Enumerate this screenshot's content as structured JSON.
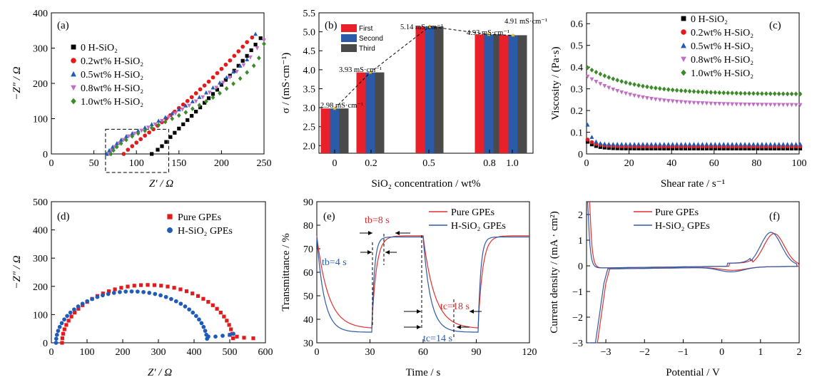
{
  "chart_data": [
    {
      "panel": "(a)",
      "type": "scatter",
      "xlabel": "Z′ / Ω",
      "ylabel": "−Z″ / Ω",
      "xlim": [
        0,
        250
      ],
      "ylim": [
        0,
        400
      ],
      "xticks": [
        "0",
        "50",
        "100",
        "150",
        "200",
        "250"
      ],
      "yticks": [
        "0",
        "100",
        "200",
        "300",
        "400"
      ],
      "legend_position": "top-left",
      "series": [
        {
          "name": "0 H-SiO₂",
          "color": "#000000",
          "marker": "square",
          "points": [
            [
              118,
              0
            ],
            [
              125,
              12
            ],
            [
              130,
              22
            ],
            [
              135,
              34
            ],
            [
              140,
              48
            ],
            [
              145,
              60
            ],
            [
              150,
              72
            ],
            [
              155,
              84
            ],
            [
              160,
              96
            ],
            [
              165,
              108
            ],
            [
              170,
              120
            ],
            [
              175,
              132
            ],
            [
              180,
              145
            ],
            [
              185,
              158
            ],
            [
              190,
              170
            ],
            [
              195,
              182
            ],
            [
              200,
              196
            ],
            [
              205,
              210
            ],
            [
              210,
              222
            ],
            [
              215,
              236
            ],
            [
              220,
              250
            ],
            [
              225,
              264
            ],
            [
              230,
              278
            ],
            [
              235,
              294
            ],
            [
              240,
              310
            ],
            [
              246,
              328
            ]
          ]
        },
        {
          "name": "0.2wt% H-SiO₂",
          "color": "#e31a1c",
          "marker": "circle",
          "points": [
            [
              85,
              0
            ],
            [
              90,
              12
            ],
            [
              95,
              22
            ],
            [
              100,
              32
            ],
            [
              105,
              42
            ],
            [
              110,
              52
            ],
            [
              115,
              61
            ],
            [
              120,
              70
            ],
            [
              125,
              80
            ],
            [
              130,
              90
            ],
            [
              135,
              100
            ],
            [
              140,
              110
            ],
            [
              145,
              120
            ],
            [
              150,
              130
            ],
            [
              155,
              140
            ],
            [
              160,
              150
            ],
            [
              165,
              161
            ],
            [
              170,
              172
            ],
            [
              175,
              183
            ],
            [
              180,
              194
            ],
            [
              185,
              205
            ],
            [
              190,
              217
            ],
            [
              195,
              229
            ],
            [
              200,
              241
            ],
            [
              205,
              253
            ],
            [
              210,
              265
            ],
            [
              215,
              278
            ],
            [
              220,
              291
            ],
            [
              225,
              304
            ],
            [
              230,
              317
            ],
            [
              236,
              330
            ]
          ]
        },
        {
          "name": "0.5wt% H-SiO₂",
          "color": "#1f5bb8",
          "marker": "triangle-up",
          "points": [
            [
              65,
              0
            ],
            [
              68,
              10
            ],
            [
              72,
              20
            ],
            [
              77,
              30
            ],
            [
              82,
              40
            ],
            [
              88,
              50
            ],
            [
              95,
              58
            ],
            [
              102,
              66
            ],
            [
              110,
              75
            ],
            [
              118,
              84
            ],
            [
              126,
              94
            ],
            [
              134,
              104
            ],
            [
              142,
              115
            ],
            [
              150,
              126
            ],
            [
              158,
              137
            ],
            [
              166,
              149
            ],
            [
              174,
              161
            ],
            [
              182,
              174
            ],
            [
              190,
              188
            ],
            [
              198,
              202
            ],
            [
              206,
              217
            ],
            [
              214,
              233
            ],
            [
              222,
              250
            ],
            [
              230,
              268
            ],
            [
              240,
              340
            ]
          ]
        },
        {
          "name": "0.8wt% H-SiO₂",
          "color": "#c06fc5",
          "marker": "triangle-down",
          "points": [
            [
              68,
              0
            ],
            [
              71,
              10
            ],
            [
              75,
              20
            ],
            [
              80,
              30
            ],
            [
              85,
              40
            ],
            [
              91,
              50
            ],
            [
              98,
              58
            ],
            [
              106,
              66
            ],
            [
              114,
              75
            ],
            [
              122,
              84
            ],
            [
              130,
              94
            ],
            [
              138,
              104
            ],
            [
              146,
              115
            ],
            [
              154,
              126
            ],
            [
              162,
              137
            ],
            [
              170,
              149
            ],
            [
              178,
              161
            ],
            [
              186,
              174
            ],
            [
              194,
              188
            ],
            [
              202,
              202
            ],
            [
              210,
              217
            ],
            [
              218,
              233
            ],
            [
              226,
              252
            ],
            [
              234,
              274
            ],
            [
              242,
              300
            ],
            [
              250,
              322
            ]
          ]
        },
        {
          "name": "1.0wt% H-SiO₂",
          "color": "#3d8a2a",
          "marker": "diamond",
          "points": [
            [
              70,
              0
            ],
            [
              73,
              10
            ],
            [
              77,
              20
            ],
            [
              82,
              30
            ],
            [
              88,
              40
            ],
            [
              95,
              50
            ],
            [
              102,
              58
            ],
            [
              110,
              66
            ],
            [
              118,
              74
            ],
            [
              126,
              82
            ],
            [
              134,
              91
            ],
            [
              142,
              100
            ],
            [
              150,
              109
            ],
            [
              158,
              118
            ],
            [
              166,
              128
            ],
            [
              174,
              138
            ],
            [
              182,
              149
            ],
            [
              190,
              160
            ],
            [
              198,
              172
            ],
            [
              206,
              185
            ],
            [
              214,
              199
            ],
            [
              222,
              214
            ],
            [
              230,
              231
            ],
            [
              238,
              250
            ],
            [
              244,
              272
            ],
            [
              250,
              312
            ]
          ]
        }
      ],
      "inset_box": {
        "x": [
          62,
          138
        ],
        "y": [
          -40,
          70
        ]
      }
    },
    {
      "panel": "(b)",
      "type": "bar",
      "xlabel": "SiO₂ concentration / wt%",
      "ylabel": "σ / (mS·cm⁻¹)",
      "ylim": [
        1.8,
        5.5
      ],
      "yticks": [
        "2.0",
        "2.5",
        "3.0",
        "3.5",
        "4.0",
        "4.5",
        "5.0",
        "5.5"
      ],
      "categories": [
        "0",
        "0.2",
        "0.5",
        "0.8",
        "1.0"
      ],
      "series": [
        {
          "name": "First",
          "color": "#e8202a",
          "values": [
            2.98,
            3.93,
            5.14,
            4.93,
            4.91
          ]
        },
        {
          "name": "Second",
          "color": "#2b5aa8",
          "values": [
            2.98,
            3.93,
            5.14,
            4.93,
            4.91
          ]
        },
        {
          "name": "Third",
          "color": "#4a4a4a",
          "values": [
            2.98,
            3.93,
            5.14,
            4.93,
            4.91
          ]
        }
      ],
      "data_labels": [
        "2.98 mS·cm⁻¹",
        "3.93 mS·cm⁻¹",
        "5.14 mS·cm⁻¹",
        "4.93 mS·cm⁻¹",
        "4.91 mS·cm⁻¹"
      ],
      "trend_line": "dashed",
      "legend_position": "top-left"
    },
    {
      "panel": "(c)",
      "type": "scatter",
      "xlabel": "Shear rate / s⁻¹",
      "ylabel": "Viscosity / (Pa·s)",
      "xlim": [
        0,
        100
      ],
      "ylim": [
        0,
        0.65
      ],
      "xticks": [
        "0",
        "20",
        "40",
        "60",
        "80",
        "100"
      ],
      "yticks": [
        "0",
        "0.1",
        "0.2",
        "0.3",
        "0.4",
        "0.5",
        "0.6"
      ],
      "legend_position": "top-right",
      "series": [
        {
          "name": "0 H-SiO₂",
          "color": "#000000",
          "marker": "square",
          "start": 0.06,
          "end": 0.025,
          "decay": 4
        },
        {
          "name": "0.2wt% H-SiO₂",
          "color": "#e31a1c",
          "marker": "circle",
          "start": 0.07,
          "end": 0.035,
          "decay": 4
        },
        {
          "name": "0.5wt% H-SiO₂",
          "color": "#1f5bb8",
          "marker": "triangle-up",
          "start": 0.16,
          "end": 0.045,
          "decay": 2
        },
        {
          "name": "0.8wt% H-SiO₂",
          "color": "#c06fc5",
          "marker": "triangle-down",
          "start": 0.36,
          "end": 0.225,
          "decay": 20
        },
        {
          "name": "1.0wt% H-SiO₂",
          "color": "#3d8a2a",
          "marker": "diamond",
          "start": 0.4,
          "end": 0.275,
          "decay": 22
        }
      ]
    },
    {
      "panel": "(d)",
      "type": "scatter",
      "xlabel": "Z′ / Ω",
      "ylabel": "−Z″ / Ω",
      "xlim": [
        0,
        600
      ],
      "ylim": [
        0,
        500
      ],
      "xticks": [
        "0",
        "100",
        "200",
        "300",
        "400",
        "500",
        "600"
      ],
      "yticks": [
        "0",
        "100",
        "200",
        "300",
        "400",
        "500"
      ],
      "legend_position": "top-right",
      "series": [
        {
          "name": "Pure GPEs",
          "color": "#e31a1c",
          "marker": "square",
          "center": 270,
          "radius": 240,
          "height": 205,
          "tail": [
            [
              500,
              28
            ],
            [
              520,
              22
            ],
            [
              540,
              18
            ],
            [
              566,
              16
            ]
          ]
        },
        {
          "name": "H-SiO₂ GPEs",
          "color": "#1f5bb8",
          "marker": "circle",
          "center": 225,
          "radius": 212,
          "height": 182,
          "tail": [
            [
              440,
              22
            ],
            [
              460,
              22
            ],
            [
              480,
              25
            ],
            [
              500,
              28
            ],
            [
              510,
              32
            ]
          ]
        }
      ]
    },
    {
      "panel": "(e)",
      "type": "line",
      "xlabel": "Time / s",
      "ylabel": "Transmittance / %",
      "xlim": [
        0,
        120
      ],
      "ylim": [
        30,
        90
      ],
      "xticks": [
        "0",
        "30",
        "60",
        "90",
        "120"
      ],
      "yticks": [
        "30",
        "40",
        "50",
        "60",
        "70",
        "80",
        "90"
      ],
      "legend_position": "top-right",
      "series": [
        {
          "name": "Pure GPEs",
          "color": "#e03030"
        },
        {
          "name": "H-SiO₂ GPEs",
          "color": "#2e5aa8"
        }
      ],
      "annotations": [
        {
          "text": "tb=8 s",
          "color": "#d42a2a"
        },
        {
          "text": "tb=4 s",
          "color": "#2e5aa8"
        },
        {
          "text": "tc=18 s",
          "color": "#d42a2a"
        },
        {
          "text": "tc=14 s",
          "color": "#2e5aa8"
        }
      ]
    },
    {
      "panel": "(f)",
      "type": "line",
      "xlabel": "Potential / V",
      "ylabel": "Current density / (mA · cm²)",
      "xlim": [
        -3.5,
        2
      ],
      "ylim": [
        -3,
        2.5
      ],
      "xticks": [
        "−3",
        "−2",
        "−1",
        "0",
        "1",
        "2"
      ],
      "yticks": [
        "−3",
        "−2",
        "−1",
        "0",
        "1",
        "2"
      ],
      "legend_position": "top-left",
      "series": [
        {
          "name": "Pure GPEs",
          "color": "#e03030"
        },
        {
          "name": "H-SiO₂ GPEs",
          "color": "#2e5aa8"
        }
      ]
    }
  ]
}
